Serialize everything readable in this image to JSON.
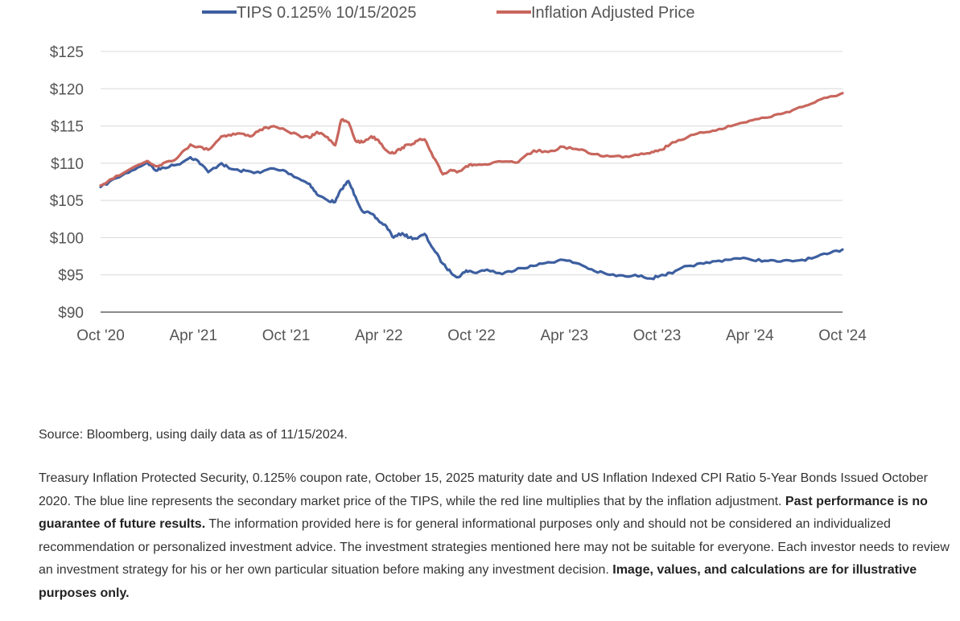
{
  "chart_data": {
    "type": "line",
    "title": "",
    "xlabel": "",
    "ylabel": "",
    "x_ticks": [
      "Oct '20",
      "Apr '21",
      "Oct '21",
      "Apr '22",
      "Oct '22",
      "Apr '23",
      "Oct '23",
      "Apr '24",
      "Oct '24"
    ],
    "x_range": [
      "2020-10",
      "2024-10"
    ],
    "y_ticks": [
      "$90",
      "$95",
      "$100",
      "$105",
      "$110",
      "$115",
      "$120",
      "$125"
    ],
    "ylim": [
      90,
      125
    ],
    "grid": "horizontal",
    "legend_position": "top",
    "series": [
      {
        "name": "TIPS 0.125% 10/15/2025",
        "color": "#3d5fa0",
        "x": [
          "2020-10-15",
          "2020-11-15",
          "2020-12-15",
          "2021-01-15",
          "2021-02-01",
          "2021-02-15",
          "2021-03-15",
          "2021-04-10",
          "2021-04-25",
          "2021-05-15",
          "2021-06-10",
          "2021-06-25",
          "2021-07-15",
          "2021-08-05",
          "2021-08-25",
          "2021-09-15",
          "2021-10-15",
          "2021-11-10",
          "2021-12-01",
          "2021-12-15",
          "2022-01-05",
          "2022-01-20",
          "2022-02-01",
          "2022-02-15",
          "2022-03-01",
          "2022-03-15",
          "2022-04-01",
          "2022-04-15",
          "2022-05-01",
          "2022-05-15",
          "2022-06-01",
          "2022-06-15",
          "2022-07-01",
          "2022-07-15",
          "2022-08-01",
          "2022-08-20",
          "2022-09-05",
          "2022-09-20",
          "2022-10-05",
          "2022-10-20",
          "2022-11-15",
          "2022-12-15",
          "2023-01-15",
          "2023-02-15",
          "2023-03-15",
          "2023-04-15",
          "2023-05-15",
          "2023-06-15",
          "2023-07-15",
          "2023-08-15",
          "2023-09-15",
          "2023-10-05",
          "2023-10-25",
          "2023-11-15",
          "2023-12-15",
          "2024-01-15",
          "2024-02-15",
          "2024-03-15",
          "2024-04-15",
          "2024-05-15",
          "2024-06-15",
          "2024-07-15",
          "2024-08-15",
          "2024-09-15",
          "2024-10-15"
        ],
        "values": [
          106.8,
          108.0,
          109.0,
          110.1,
          109.0,
          109.4,
          109.8,
          110.8,
          110.3,
          108.8,
          110.0,
          109.3,
          109.0,
          108.9,
          108.7,
          109.3,
          108.9,
          107.9,
          107.2,
          105.8,
          105.0,
          104.8,
          106.5,
          107.6,
          105.5,
          103.5,
          103.2,
          102.3,
          101.5,
          100.0,
          100.6,
          100.0,
          99.9,
          100.5,
          98.5,
          96.5,
          95.3,
          94.7,
          95.6,
          95.3,
          95.7,
          95.1,
          95.9,
          96.2,
          96.7,
          97.0,
          96.5,
          95.5,
          95.0,
          94.8,
          94.9,
          94.5,
          95.0,
          95.2,
          96.2,
          96.5,
          96.9,
          97.2,
          97.1,
          96.9,
          96.8,
          96.9,
          97.2,
          97.8,
          98.4
        ]
      },
      {
        "name": "Inflation Adjusted Price",
        "color": "#c8665d",
        "x": [
          "2020-10-15",
          "2020-11-15",
          "2020-12-15",
          "2021-01-15",
          "2021-02-01",
          "2021-02-15",
          "2021-03-15",
          "2021-04-10",
          "2021-04-25",
          "2021-05-15",
          "2021-06-10",
          "2021-06-25",
          "2021-07-15",
          "2021-08-05",
          "2021-08-25",
          "2021-09-15",
          "2021-10-15",
          "2021-11-10",
          "2021-12-01",
          "2021-12-15",
          "2022-01-05",
          "2022-01-20",
          "2022-02-01",
          "2022-02-15",
          "2022-03-01",
          "2022-03-15",
          "2022-04-01",
          "2022-04-15",
          "2022-05-01",
          "2022-05-15",
          "2022-06-01",
          "2022-06-15",
          "2022-07-01",
          "2022-07-15",
          "2022-08-01",
          "2022-08-20",
          "2022-09-05",
          "2022-09-20",
          "2022-10-05",
          "2022-10-20",
          "2022-11-15",
          "2022-12-15",
          "2023-01-15",
          "2023-02-15",
          "2023-03-15",
          "2023-04-15",
          "2023-05-15",
          "2023-06-15",
          "2023-07-15",
          "2023-08-15",
          "2023-09-15",
          "2023-10-05",
          "2023-10-25",
          "2023-11-15",
          "2023-12-15",
          "2024-01-15",
          "2024-02-15",
          "2024-03-15",
          "2024-04-15",
          "2024-05-15",
          "2024-06-15",
          "2024-07-15",
          "2024-08-15",
          "2024-09-15",
          "2024-10-15"
        ],
        "values": [
          107.0,
          108.3,
          109.3,
          110.3,
          109.6,
          110.0,
          110.7,
          112.5,
          112.2,
          111.8,
          113.6,
          113.8,
          114.0,
          113.6,
          114.5,
          114.9,
          114.4,
          113.7,
          113.4,
          114.2,
          113.5,
          112.4,
          115.8,
          115.5,
          113.0,
          112.8,
          113.6,
          113.1,
          111.7,
          111.3,
          112.1,
          112.5,
          113.0,
          113.2,
          110.8,
          108.5,
          109.1,
          108.9,
          109.6,
          109.8,
          109.8,
          110.2,
          110.1,
          111.7,
          111.5,
          112.2,
          111.8,
          111.2,
          110.9,
          110.9,
          111.3,
          111.5,
          111.8,
          112.8,
          113.5,
          114.1,
          114.6,
          115.1,
          115.7,
          116.1,
          116.6,
          117.3,
          118.0,
          118.8,
          119.4
        ]
      }
    ]
  },
  "source_text": "Source: Bloomberg, using daily data as of 11/15/2024.",
  "disclaimer": {
    "part1": "Treasury Inflation Protected Security, 0.125% coupon rate, October 15, 2025 maturity date and US Inflation Indexed CPI Ratio 5-Year Bonds Issued October 2020. The blue line represents the secondary market price of the TIPS, while the red line multiplies that by the inflation adjustment. ",
    "bold1": "Past performance is no guarantee of future results.",
    "part2": " The information provided here is for general informational purposes only and should not be considered an individualized recommendation or personalized investment advice. The investment strategies mentioned here may not be suitable for everyone. Each investor needs to review an investment strategy for his or her own particular situation before making any investment decision. ",
    "bold2": "Image, values, and calculations are for illustrative purposes only."
  }
}
